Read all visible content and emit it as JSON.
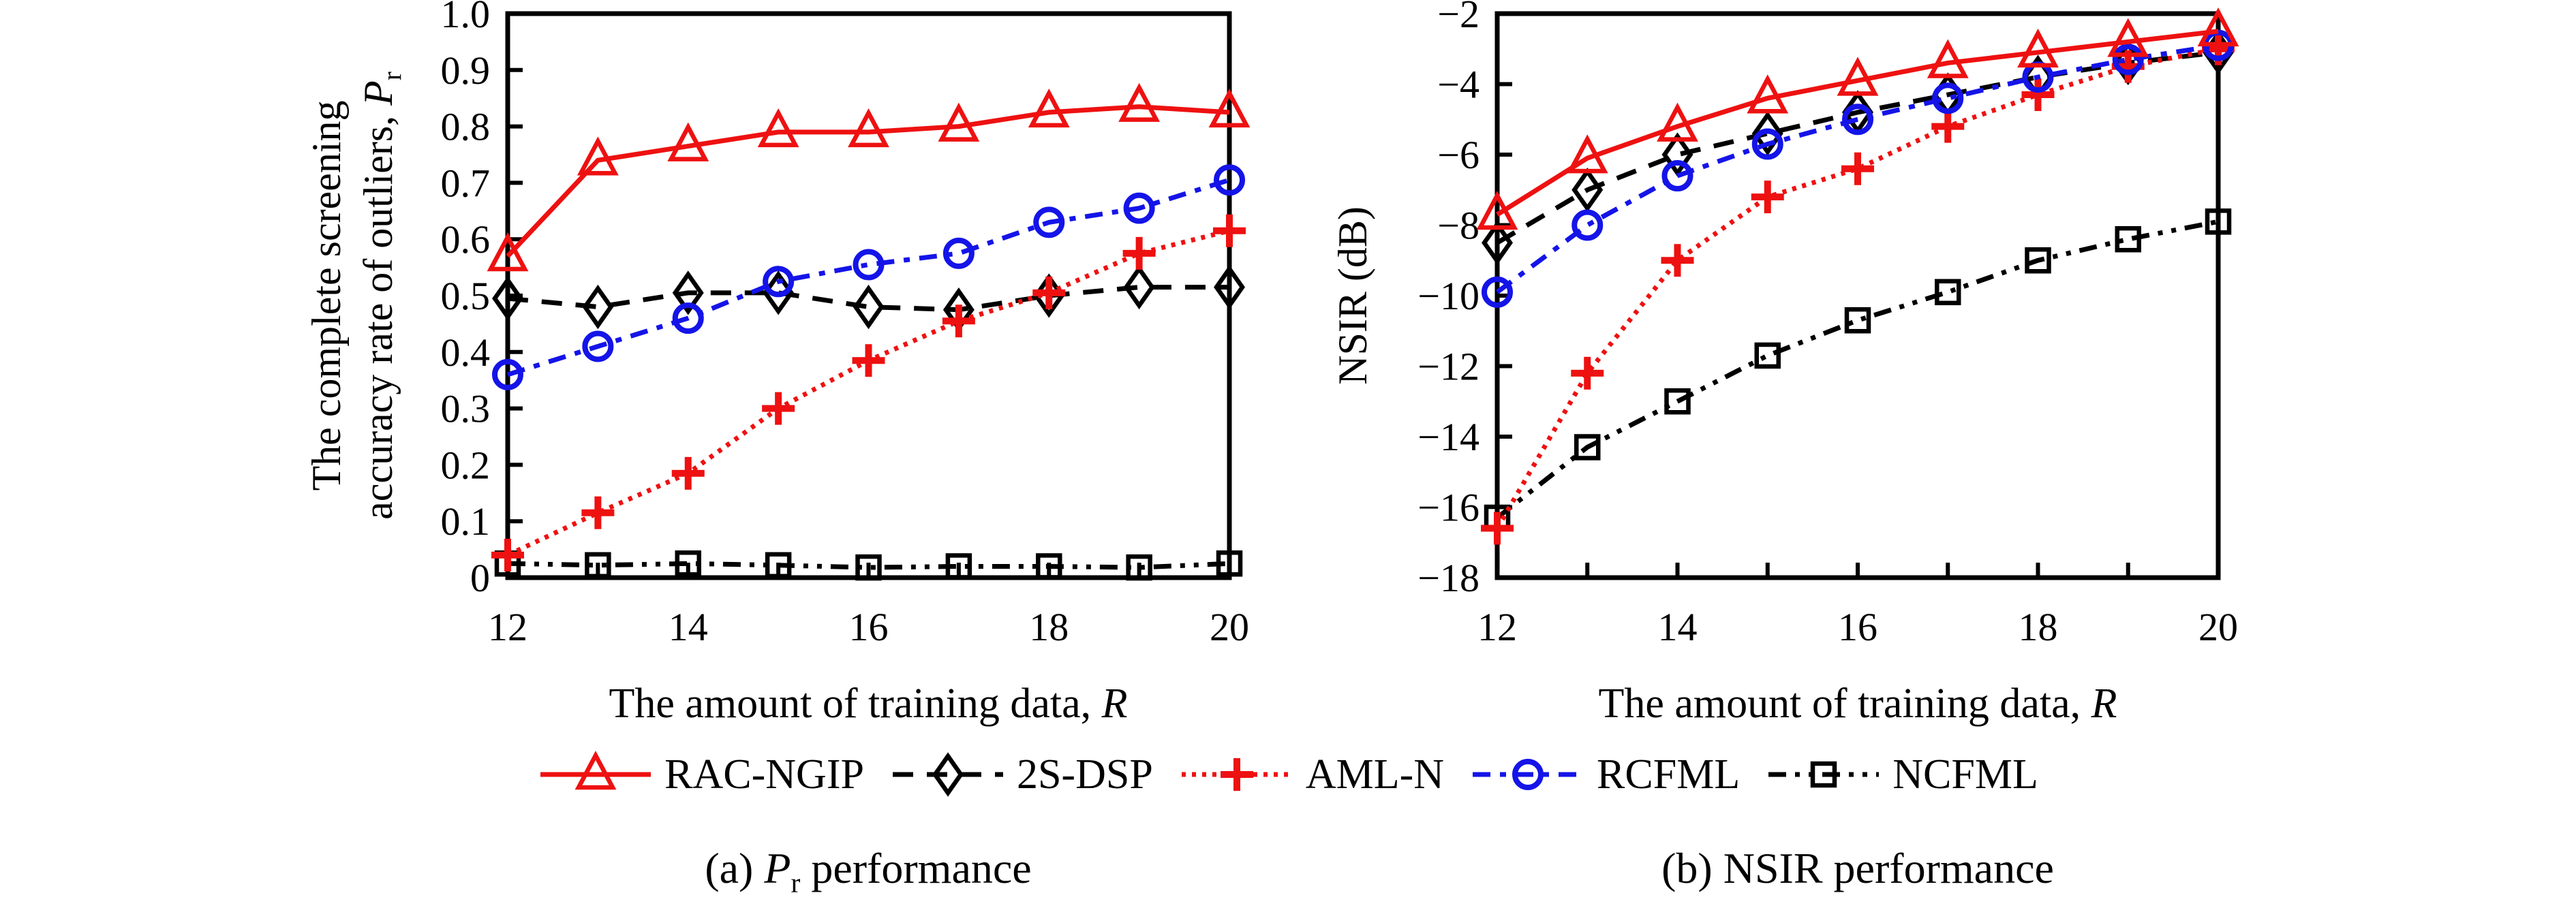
{
  "figure": {
    "left_ylabel": {
      "line1": "The complete screening",
      "line2_prefix": "accuracy rate of outliers, ",
      "var": "P",
      "sub": "r"
    },
    "right_ylabel": "NSIR (dB)",
    "xaxis_title": {
      "prefix": "The amount of training data, ",
      "var": "R"
    },
    "captions": {
      "a_prefix": "(a) ",
      "a_var": "P",
      "a_sub": "r",
      "a_suffix": " performance",
      "b": "(b) NSIR performance"
    }
  },
  "colors": {
    "red": "#ee1111",
    "blue": "#1414e8",
    "black": "#000000"
  },
  "series_styles": {
    "RAC-NGIP": {
      "color": "#ee1111",
      "dash": "",
      "marker": "triangle"
    },
    "2S-DSP": {
      "color": "#000000",
      "dash": "30 20",
      "marker": "diamond"
    },
    "AML-N": {
      "color": "#ee1111",
      "dash": "6 9",
      "marker": "plus"
    },
    "RCFML": {
      "color": "#1414e8",
      "dash": "26 14 9 14",
      "marker": "circle"
    },
    "NCFML": {
      "color": "#000000",
      "dash": "26 13 7 13 7 13",
      "marker": "square"
    }
  },
  "draw_order": [
    "2S-DSP",
    "NCFML",
    "AML-N",
    "RCFML",
    "RAC-NGIP"
  ],
  "legend": {
    "items": [
      "RAC-NGIP",
      "2S-DSP",
      "AML-N",
      "RCFML",
      "NCFML"
    ]
  },
  "chart_data": [
    {
      "id": "a",
      "type": "line",
      "title": "(a) Pr performance",
      "xlabel": "The amount of training data, R",
      "ylabel": "The complete screening accuracy rate of outliers, Pr",
      "x": [
        12,
        13,
        14,
        15,
        16,
        17,
        18,
        19,
        20
      ],
      "xlim": [
        12,
        20
      ],
      "ylim": [
        0,
        1.0
      ],
      "grid": false,
      "xticks_labeled": [
        12,
        14,
        16,
        18,
        20
      ],
      "xticks_all": [
        12,
        13,
        14,
        15,
        16,
        17,
        18,
        19,
        20
      ],
      "yticks": [
        {
          "v": 1.0,
          "label": "1.0"
        },
        {
          "v": 0.9,
          "label": "0.9"
        },
        {
          "v": 0.8,
          "label": "0.8"
        },
        {
          "v": 0.7,
          "label": "0.7"
        },
        {
          "v": 0.6,
          "label": "0.6"
        },
        {
          "v": 0.5,
          "label": "0.5"
        },
        {
          "v": 0.4,
          "label": "0.4"
        },
        {
          "v": 0.3,
          "label": "0.3"
        },
        {
          "v": 0.2,
          "label": "0.2"
        },
        {
          "v": 0.1,
          "label": "0.1"
        },
        {
          "v": 0.0,
          "label": "0"
        }
      ],
      "series": [
        {
          "name": "RAC-NGIP",
          "values": [
            0.57,
            0.74,
            0.765,
            0.79,
            0.79,
            0.8,
            0.825,
            0.835,
            0.825
          ]
        },
        {
          "name": "2S-DSP",
          "values": [
            0.495,
            0.48,
            0.505,
            0.505,
            0.48,
            0.475,
            0.5,
            0.515,
            0.515
          ]
        },
        {
          "name": "AML-N",
          "values": [
            0.04,
            0.115,
            0.185,
            0.3,
            0.385,
            0.455,
            0.505,
            0.575,
            0.615
          ]
        },
        {
          "name": "RCFML",
          "values": [
            0.36,
            0.41,
            0.46,
            0.525,
            0.555,
            0.575,
            0.63,
            0.655,
            0.705
          ]
        },
        {
          "name": "NCFML",
          "values": [
            0.025,
            0.022,
            0.025,
            0.022,
            0.018,
            0.02,
            0.02,
            0.018,
            0.025
          ]
        }
      ]
    },
    {
      "id": "b",
      "type": "line",
      "title": "(b) NSIR performance",
      "xlabel": "The amount of training data, R",
      "ylabel": "NSIR (dB)",
      "x": [
        12,
        13,
        14,
        15,
        16,
        17,
        18,
        19,
        20
      ],
      "xlim": [
        12,
        20
      ],
      "ylim": [
        -18,
        -2
      ],
      "grid": false,
      "xticks_labeled": [
        12,
        14,
        16,
        18,
        20
      ],
      "xticks_all": [
        12,
        13,
        14,
        15,
        16,
        17,
        18,
        19,
        20
      ],
      "yticks": [
        {
          "v": -2,
          "label": "−2"
        },
        {
          "v": -4,
          "label": "−4"
        },
        {
          "v": -6,
          "label": "−6"
        },
        {
          "v": -8,
          "label": "−8"
        },
        {
          "v": -10,
          "label": "−10"
        },
        {
          "v": -12,
          "label": "−12"
        },
        {
          "v": -14,
          "label": "−14"
        },
        {
          "v": -16,
          "label": "−16"
        },
        {
          "v": -18,
          "label": "−18"
        }
      ],
      "series": [
        {
          "name": "RAC-NGIP",
          "values": [
            -7.7,
            -6.1,
            -5.2,
            -4.4,
            -3.9,
            -3.4,
            -3.1,
            -2.8,
            -2.5
          ]
        },
        {
          "name": "2S-DSP",
          "values": [
            -8.5,
            -7.0,
            -6.0,
            -5.4,
            -4.8,
            -4.3,
            -3.8,
            -3.4,
            -3.1
          ]
        },
        {
          "name": "AML-N",
          "values": [
            -16.6,
            -12.2,
            -9.0,
            -7.2,
            -6.4,
            -5.2,
            -4.3,
            -3.5,
            -3.0
          ]
        },
        {
          "name": "RCFML",
          "values": [
            -9.9,
            -8.0,
            -6.6,
            -5.7,
            -5.0,
            -4.4,
            -3.8,
            -3.3,
            -2.9
          ]
        },
        {
          "name": "NCFML",
          "values": [
            -16.3,
            -14.3,
            -13.0,
            -11.7,
            -10.7,
            -9.9,
            -9.0,
            -8.4,
            -7.9
          ]
        }
      ]
    }
  ]
}
